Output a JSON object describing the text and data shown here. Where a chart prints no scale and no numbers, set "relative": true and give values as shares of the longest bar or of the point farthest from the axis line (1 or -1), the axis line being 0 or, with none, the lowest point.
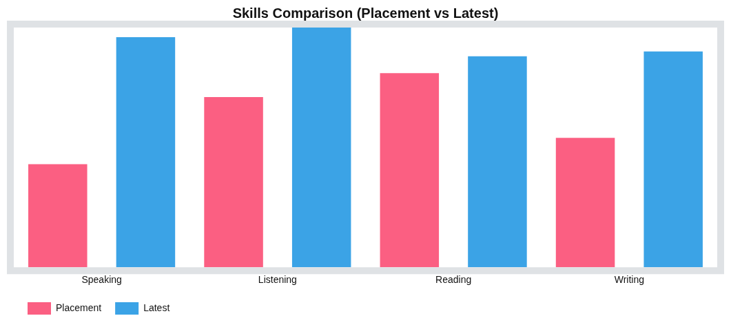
{
  "chart_data": {
    "type": "bar",
    "title": "Skills Comparison (Placement vs Latest)",
    "categories": [
      "Speaking",
      "Listening",
      "Reading",
      "Writing"
    ],
    "relative": true,
    "legend": "bottom left",
    "grid": false,
    "series": [
      {
        "name": "Placement",
        "color": "#fb5f82",
        "values": [
          0.43,
          0.71,
          0.81,
          0.54
        ]
      },
      {
        "name": "Latest",
        "color": "#3ba3e6",
        "values": [
          0.96,
          1,
          0.88,
          0.9
        ]
      }
    ]
  }
}
